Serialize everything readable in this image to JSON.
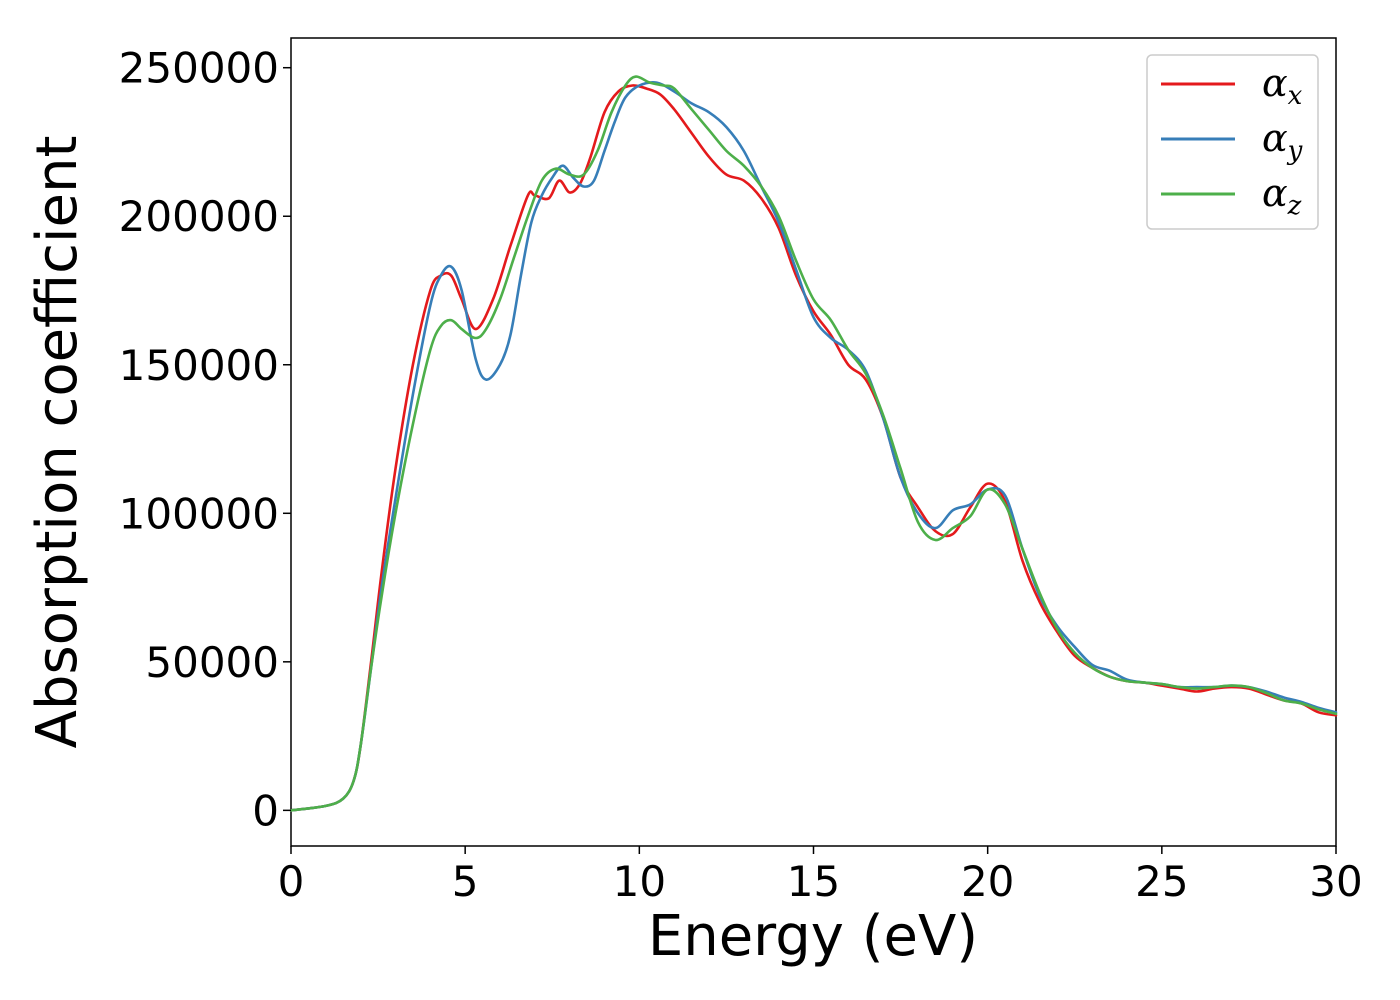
{
  "chart_data": {
    "type": "line",
    "xlabel": "Energy (eV)",
    "ylabel": "Absorption coefficient",
    "xlim": [
      0,
      30
    ],
    "ylim": [
      -12000,
      260000
    ],
    "xticks": [
      0,
      5,
      10,
      15,
      20,
      25,
      30
    ],
    "yticks": [
      0,
      50000,
      100000,
      150000,
      200000,
      250000
    ],
    "grid": false,
    "legend_position": "top-right",
    "series": [
      {
        "name": "α",
        "subscript": "x",
        "color": "#e41a1c",
        "x": [
          0,
          1,
          1.5,
          1.8,
          2.0,
          2.3,
          2.6,
          3.0,
          3.5,
          4.0,
          4.3,
          4.6,
          4.9,
          5.3,
          5.8,
          6.3,
          6.8,
          7.0,
          7.4,
          7.7,
          8.0,
          8.3,
          8.6,
          9.0,
          9.4,
          9.8,
          10.2,
          10.6,
          11.0,
          11.5,
          12.0,
          12.5,
          13.0,
          13.5,
          14.0,
          14.5,
          15.0,
          15.5,
          16.0,
          16.5,
          17.0,
          17.5,
          18.0,
          18.5,
          19.0,
          19.5,
          20.0,
          20.5,
          21.0,
          21.5,
          22.0,
          22.5,
          23.0,
          23.5,
          24.0,
          24.5,
          25.0,
          25.5,
          26.0,
          26.5,
          27.0,
          27.5,
          28.0,
          28.5,
          29.0,
          29.5,
          30.0
        ],
        "values": [
          0,
          1500,
          4000,
          10000,
          22000,
          50000,
          80000,
          115000,
          150000,
          175000,
          180000,
          180000,
          172000,
          162000,
          172000,
          190000,
          207000,
          207000,
          206000,
          212000,
          208000,
          211000,
          220000,
          235000,
          242000,
          244000,
          243000,
          241000,
          236000,
          228000,
          220000,
          214000,
          212000,
          206000,
          196000,
          180000,
          168000,
          160000,
          150000,
          145000,
          132000,
          112000,
          102000,
          94000,
          93000,
          102000,
          110000,
          104000,
          84000,
          70000,
          60000,
          52000,
          48000,
          45000,
          43500,
          43000,
          42000,
          41000,
          40000,
          41000,
          41500,
          41000,
          39000,
          37000,
          36000,
          33000,
          32000
        ]
      },
      {
        "name": "α",
        "subscript": "y",
        "color": "#377eb8",
        "x": [
          0,
          1,
          1.5,
          1.8,
          2.0,
          2.3,
          2.6,
          3.0,
          3.5,
          4.0,
          4.3,
          4.6,
          4.9,
          5.3,
          5.6,
          6.0,
          6.3,
          6.6,
          6.9,
          7.2,
          7.5,
          7.8,
          8.1,
          8.4,
          8.7,
          9.0,
          9.3,
          9.6,
          10.0,
          10.5,
          11.0,
          11.5,
          12.0,
          12.5,
          13.0,
          13.5,
          14.0,
          14.5,
          15.0,
          15.5,
          16.0,
          16.5,
          17.0,
          17.5,
          18.0,
          18.5,
          19.0,
          19.5,
          20.0,
          20.5,
          21.0,
          21.5,
          22.0,
          22.5,
          23.0,
          23.5,
          24.0,
          24.5,
          25.0,
          25.5,
          26.0,
          26.5,
          27.0,
          27.5,
          28.0,
          28.5,
          29.0,
          29.5,
          30.0
        ],
        "values": [
          0,
          1500,
          4000,
          10000,
          22000,
          48000,
          75000,
          105000,
          140000,
          170000,
          180000,
          183000,
          175000,
          152000,
          145000,
          150000,
          160000,
          180000,
          198000,
          207000,
          213000,
          217000,
          213000,
          210000,
          212000,
          222000,
          232000,
          240000,
          244000,
          245000,
          242000,
          238000,
          235000,
          230000,
          222000,
          210000,
          198000,
          182000,
          166000,
          159000,
          155000,
          148000,
          132000,
          112000,
          100000,
          95000,
          101000,
          103000,
          108000,
          106000,
          88000,
          72000,
          62000,
          55000,
          49000,
          47000,
          44000,
          43000,
          42500,
          41500,
          41500,
          41500,
          42000,
          41500,
          40000,
          38000,
          36500,
          34500,
          33000
        ]
      },
      {
        "name": "α",
        "subscript": "z",
        "color": "#4daf4a",
        "x": [
          0,
          1,
          1.5,
          1.8,
          2.0,
          2.3,
          2.6,
          3.0,
          3.5,
          4.0,
          4.3,
          4.6,
          4.9,
          5.3,
          5.6,
          6.0,
          6.4,
          6.8,
          7.2,
          7.6,
          8.0,
          8.4,
          8.8,
          9.2,
          9.6,
          9.9,
          10.3,
          10.7,
          11.0,
          11.5,
          12.0,
          12.5,
          13.0,
          13.5,
          14.0,
          14.5,
          15.0,
          15.5,
          16.0,
          16.5,
          17.0,
          17.5,
          18.0,
          18.5,
          19.0,
          19.5,
          20.0,
          20.5,
          21.0,
          21.5,
          22.0,
          22.5,
          23.0,
          23.5,
          24.0,
          24.5,
          25.0,
          25.5,
          26.0,
          26.5,
          27.0,
          27.5,
          28.0,
          28.5,
          29.0,
          29.5,
          30.0
        ],
        "values": [
          0,
          1500,
          4000,
          10000,
          22000,
          48000,
          72000,
          100000,
          130000,
          155000,
          163000,
          165000,
          162000,
          159000,
          162000,
          172000,
          186000,
          200000,
          212000,
          216000,
          214000,
          214000,
          222000,
          235000,
          244000,
          247000,
          245000,
          244000,
          243000,
          236000,
          229000,
          222000,
          217000,
          210000,
          200000,
          185000,
          172000,
          165000,
          155000,
          147000,
          133000,
          115000,
          97000,
          91000,
          95000,
          99000,
          108000,
          103000,
          88000,
          73000,
          61000,
          53000,
          48000,
          45000,
          43500,
          43000,
          42500,
          41500,
          41000,
          41500,
          42000,
          41500,
          39500,
          37000,
          36000,
          34000,
          32500
        ]
      }
    ]
  }
}
